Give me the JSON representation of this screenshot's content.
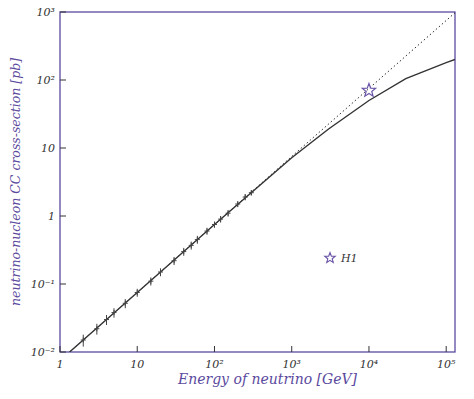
{
  "chart_data": {
    "type": "line",
    "x_label": "Energy of neutrino [GeV]",
    "y_label": "neutrino-nucleon CC cross-section [pb]",
    "log": true,
    "grid": false,
    "legend": "right",
    "color": "#5b4a9e",
    "xlim": [
      1,
      130000
    ],
    "ylim": [
      0.01,
      1000
    ],
    "xticks": [
      1,
      10,
      {
        "value": 100,
        "label": "10²"
      },
      {
        "value": 1000,
        "label": "10³"
      },
      {
        "value": 10000,
        "label": "10⁴"
      },
      {
        "value": 100000,
        "label": "10⁵"
      }
    ],
    "yticks": [
      {
        "value": 0.01,
        "label": "10⁻²"
      },
      {
        "value": 0.1,
        "label": "10⁻¹"
      },
      1,
      10,
      {
        "value": 100,
        "label": "10²"
      },
      {
        "value": 1000,
        "label": "10³"
      }
    ],
    "series": [
      {
        "type": "line",
        "line_style": "dotted",
        "color": "#333333",
        "x": [
          1.33,
          130000
        ],
        "values": [
          0.01,
          975
        ]
      },
      {
        "type": "line",
        "line_style": "solid",
        "color": "#333333",
        "x": [
          1.33,
          10,
          100,
          1000,
          3000,
          10000,
          30000,
          100000,
          130000
        ],
        "values": [
          0.01,
          0.075,
          0.75,
          7.2,
          19,
          50,
          105,
          180,
          200
        ]
      },
      {
        "type": "scatter",
        "marker": "cross",
        "color": "#444444",
        "x": [
          2,
          3,
          4,
          5,
          7,
          10,
          15,
          20,
          30,
          40,
          50,
          60,
          80,
          100,
          120,
          150,
          200,
          250,
          300
        ],
        "values": [
          0.015,
          0.022,
          0.03,
          0.038,
          0.052,
          0.075,
          0.11,
          0.15,
          0.22,
          0.3,
          0.37,
          0.45,
          0.6,
          0.75,
          0.9,
          1.1,
          1.5,
          1.9,
          2.2
        ],
        "errors": [
          0.003,
          0.004,
          0.005,
          0.006,
          0.008,
          0.01,
          0.015,
          0.02,
          0.03,
          0.04,
          0.05,
          0.06,
          0.07,
          0.08,
          0.1,
          0.12,
          0.15,
          0.2,
          0.2
        ]
      },
      {
        "name": "H1",
        "type": "scatter",
        "marker": "star",
        "color": "#6a55a8",
        "x": [
          10000
        ],
        "values": [
          70
        ]
      }
    ]
  }
}
